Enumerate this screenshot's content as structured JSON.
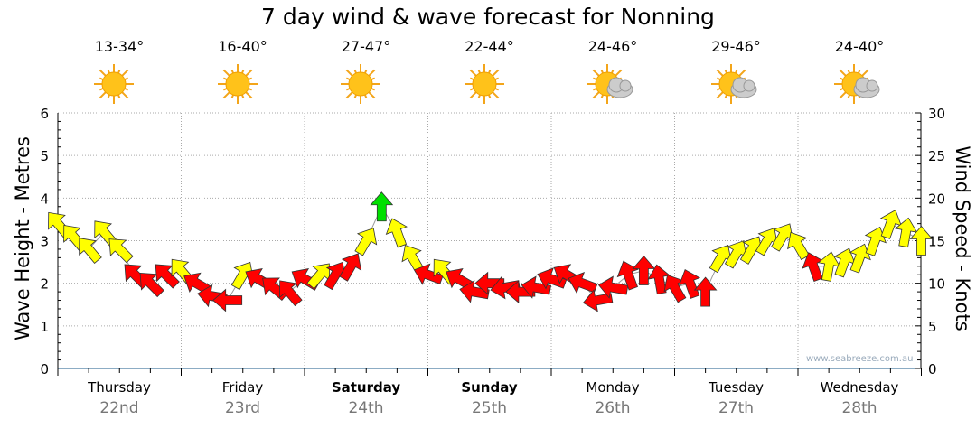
{
  "title": "7 day wind & wave forecast for Nonning",
  "watermark": "www.seabreeze.com.au",
  "days": [
    {
      "name": "Thursday",
      "date": "22nd",
      "temp": "13-34°",
      "icon": "sun-icon",
      "bold": false
    },
    {
      "name": "Friday",
      "date": "23rd",
      "temp": "16-40°",
      "icon": "sun-icon",
      "bold": false
    },
    {
      "name": "Saturday",
      "date": "24th",
      "temp": "27-47°",
      "icon": "sun-icon",
      "bold": true
    },
    {
      "name": "Sunday",
      "date": "25th",
      "temp": "22-44°",
      "icon": "sun-icon",
      "bold": true
    },
    {
      "name": "Monday",
      "date": "26th",
      "temp": "24-46°",
      "icon": "partly-cloudy-icon",
      "bold": false
    },
    {
      "name": "Tuesday",
      "date": "27th",
      "temp": "29-46°",
      "icon": "partly-cloudy-icon",
      "bold": false
    },
    {
      "name": "Wednesday",
      "date": "28th",
      "temp": "24-40°",
      "icon": "partly-cloudy-icon",
      "bold": false
    }
  ],
  "chart_data": {
    "type": "line",
    "title": "7 day wind & wave forecast for Nonning",
    "ylabel": "Wave Height - Metres",
    "y2label": "Wind Speed - Knots",
    "ylim": [
      0,
      6
    ],
    "y2lim": [
      0,
      30
    ],
    "yticks": [
      "0",
      "1",
      "2",
      "3",
      "4",
      "5",
      "6"
    ],
    "y2ticks": [
      "0",
      "5",
      "10",
      "15",
      "20",
      "25",
      "30"
    ],
    "interval_hours": 3,
    "colors": {
      "Y": "#ffff00",
      "R": "#ff0000",
      "G": "#00e000"
    },
    "wave_m": [
      3.4,
      3.1,
      2.8,
      3.2,
      2.8,
      2.2,
      2.0,
      2.2,
      2.3,
      2.0,
      1.7,
      1.6,
      2.2,
      2.1,
      1.9,
      1.8,
      2.1,
      2.2,
      2.2,
      2.4,
      3.0,
      3.8,
      3.2,
      2.6,
      2.2,
      2.3,
      2.1,
      1.8,
      2.0,
      1.9,
      1.8,
      1.9,
      2.1,
      2.2,
      2.0,
      1.6,
      1.9,
      2.2,
      2.3,
      2.1,
      1.9,
      2.0,
      1.8,
      2.6,
      2.7,
      2.8,
      3.0,
      3.1,
      2.9,
      2.4,
      2.4,
      2.5,
      2.6,
      3.0,
      3.4,
      3.2,
      3.0
    ],
    "wind_class": "YYYYYRRRYRRRYRRRRYRRYGYYRYRRRRRRRRRRRRRRRRRYYYYYYRYYYYYYY",
    "wind_dir_deg": [
      -40,
      -40,
      -40,
      -40,
      -45,
      -45,
      -45,
      -45,
      -40,
      -60,
      -80,
      -90,
      30,
      -60,
      -50,
      -40,
      -60,
      40,
      30,
      30,
      30,
      0,
      -20,
      -30,
      -70,
      -40,
      -60,
      -80,
      -90,
      -100,
      -90,
      -80,
      -70,
      -60,
      -70,
      -100,
      -80,
      -20,
      0,
      -10,
      -30,
      -20,
      0,
      30,
      30,
      30,
      30,
      30,
      -30,
      -20,
      10,
      20,
      20,
      20,
      20,
      10,
      0
    ]
  }
}
